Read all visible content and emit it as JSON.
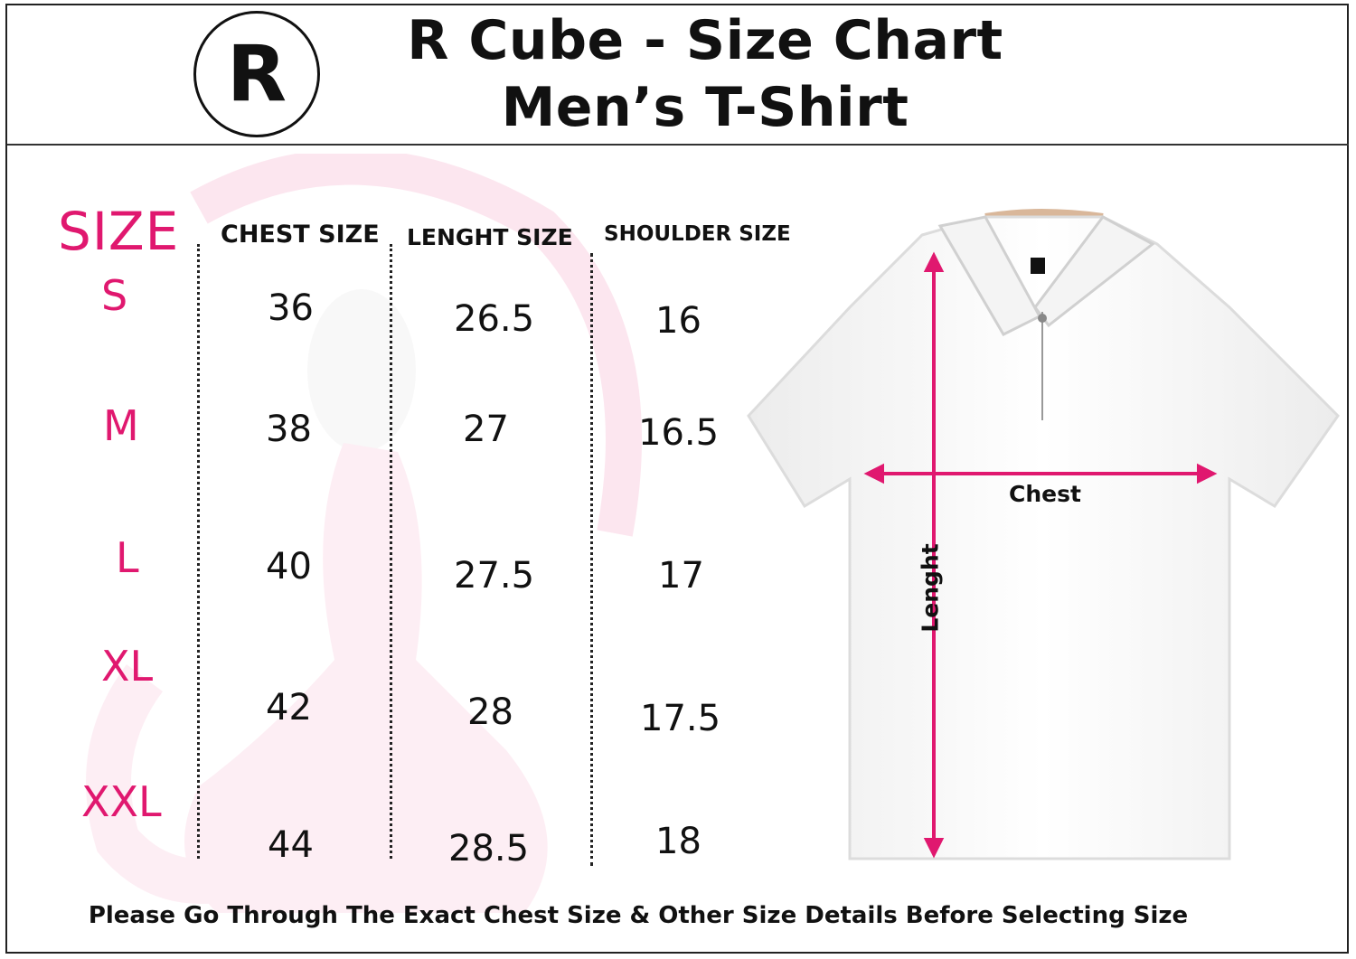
{
  "header": {
    "logo_letter": "R",
    "title_line1": "R Cube - Size Chart",
    "title_line2": "Men’s T-Shirt"
  },
  "table": {
    "size_header": "SIZE",
    "columns": [
      "CHEST SIZE",
      "LENGHT SIZE",
      "SHOULDER SIZE"
    ],
    "rows": [
      {
        "size": "S",
        "chest": "36",
        "length": "26.5",
        "shoulder": "16"
      },
      {
        "size": "M",
        "chest": "38",
        "length": "27",
        "shoulder": "16.5"
      },
      {
        "size": "L",
        "chest": "40",
        "length": "27.5",
        "shoulder": "17"
      },
      {
        "size": "XL",
        "chest": "42",
        "length": "28",
        "shoulder": "17.5"
      },
      {
        "size": "XXL",
        "chest": "44",
        "length": "28.5",
        "shoulder": "18"
      }
    ]
  },
  "diagram": {
    "chest_label": "Chest",
    "length_label": "Lenght",
    "arrow_color": "#e0186f"
  },
  "footer": {
    "note": "Please Go Through The Exact Chest Size & Other Size Details Before Selecting Size"
  },
  "colors": {
    "accent": "#e0186f",
    "text": "#111111",
    "border": "#222222"
  }
}
